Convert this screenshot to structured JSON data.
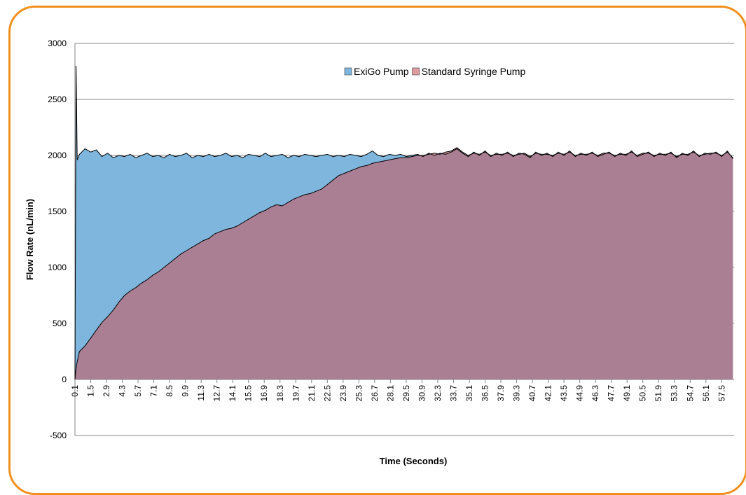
{
  "chart_data": {
    "type": "area",
    "xlabel": "Time (Seconds)",
    "ylabel": "Flow Rate (nL/min)",
    "legend": "top",
    "grid": true,
    "x": [
      0.1,
      0.2,
      0.3,
      0.5,
      1,
      1.5,
      2,
      2.5,
      3,
      3.5,
      4,
      4.5,
      5,
      5.5,
      6,
      6.5,
      7,
      7.5,
      8,
      8.5,
      9,
      9.5,
      10,
      10.5,
      11,
      11.5,
      12,
      12.5,
      13,
      13.5,
      14,
      14.5,
      15,
      15.5,
      16,
      16.5,
      17,
      17.5,
      18,
      18.5,
      19,
      19.5,
      20,
      20.5,
      21,
      21.5,
      22,
      22.5,
      23,
      23.5,
      24,
      24.5,
      25,
      25.5,
      26,
      26.5,
      27,
      27.5,
      28,
      28.5,
      29,
      29.5,
      30,
      30.5,
      31,
      31.5,
      32,
      32.5,
      33,
      33.5,
      34,
      34.5,
      35,
      35.5,
      36,
      36.5,
      37,
      37.5,
      38,
      38.5,
      39,
      39.5,
      40,
      40.5,
      41,
      41.5,
      42,
      42.5,
      43,
      43.5,
      44,
      44.5,
      45,
      45.5,
      46,
      46.5,
      47,
      47.5,
      48,
      48.5,
      49,
      49.5,
      50,
      50.5,
      51,
      51.5,
      52,
      52.5,
      53,
      53.5,
      54,
      54.5,
      55,
      55.5,
      56,
      56.5,
      57,
      57.5,
      58,
      58.5
    ],
    "series": [
      {
        "name": "ExiGo Pump",
        "color": "#7eb6dd",
        "values": [
          0,
          2800,
          1960,
          2010,
          2060,
          2030,
          2050,
          1990,
          2020,
          1980,
          2000,
          1990,
          2010,
          1980,
          2000,
          2020,
          1990,
          2000,
          1980,
          2010,
          1990,
          2000,
          2020,
          1980,
          2000,
          1990,
          2010,
          1990,
          2000,
          2020,
          1990,
          2000,
          1980,
          2010,
          2000,
          1990,
          2020,
          1990,
          2000,
          2010,
          1980,
          2000,
          1990,
          2010,
          2000,
          1990,
          2000,
          2010,
          1990,
          2000,
          1990,
          2010,
          2000,
          1990,
          2010,
          2040,
          2000,
          1990,
          2010,
          2000,
          2010,
          1990,
          2000,
          2010,
          1990,
          2020,
          2000,
          2020,
          2010,
          2030,
          2060,
          2020,
          1990,
          2030,
          2000,
          2040,
          1990,
          2020,
          2000,
          2030,
          1990,
          2020,
          2010,
          1980,
          2030,
          2000,
          2020,
          1990,
          2030,
          2000,
          2040,
          1990,
          2020,
          2000,
          2030,
          1990,
          2010,
          2030,
          1990,
          2020,
          2000,
          2040,
          1990,
          2010,
          2030,
          1990,
          2020,
          2000,
          2030,
          1980,
          2020,
          2000,
          2040,
          1990,
          2020,
          2010,
          2030,
          1990,
          2040,
          1970
        ]
      },
      {
        "name": "Standard Syringe Pump",
        "color": "#c85a64",
        "values": [
          0,
          100,
          160,
          250,
          300,
          370,
          440,
          510,
          560,
          620,
          690,
          750,
          790,
          820,
          860,
          890,
          930,
          960,
          1000,
          1040,
          1080,
          1120,
          1150,
          1180,
          1210,
          1240,
          1260,
          1300,
          1320,
          1340,
          1350,
          1370,
          1400,
          1430,
          1460,
          1490,
          1510,
          1540,
          1560,
          1550,
          1580,
          1610,
          1630,
          1650,
          1660,
          1680,
          1700,
          1740,
          1780,
          1820,
          1840,
          1860,
          1880,
          1900,
          1910,
          1930,
          1940,
          1950,
          1960,
          1970,
          1980,
          1980,
          1990,
          2000,
          2000,
          2010,
          2020,
          2010,
          2030,
          2040,
          2070,
          2030,
          2000,
          2020,
          2010,
          2030,
          2000,
          2010,
          2010,
          2020,
          2000,
          2010,
          2020,
          1990,
          2020,
          2010,
          2010,
          2000,
          2020,
          2010,
          2030,
          2000,
          2010,
          2010,
          2020,
          2000,
          2020,
          2020,
          2000,
          2010,
          2010,
          2030,
          2000,
          2020,
          2020,
          2000,
          2010,
          2010,
          2020,
          1990,
          2010,
          2010,
          2030,
          2000,
          2010,
          2020,
          2020,
          2000,
          2030,
          1980
        ]
      }
    ],
    "xlim": [
      0.1,
      58.6
    ],
    "xticks": [
      0.1,
      1.5,
      2.9,
      4.3,
      5.7,
      7.1,
      8.5,
      9.9,
      11.3,
      12.7,
      14.1,
      15.5,
      16.9,
      18.3,
      19.7,
      21.1,
      22.5,
      23.9,
      25.3,
      26.7,
      28.1,
      29.5,
      30.9,
      32.3,
      33.7,
      35.1,
      36.5,
      37.9,
      39.3,
      40.7,
      42.1,
      43.5,
      44.9,
      46.3,
      47.7,
      49.1,
      50.5,
      51.9,
      53.3,
      54.7,
      56.1,
      57.5
    ],
    "ylim": [
      -500,
      3000
    ],
    "yticks": [
      -500,
      0,
      500,
      1000,
      1500,
      2000,
      2500,
      3000
    ]
  }
}
